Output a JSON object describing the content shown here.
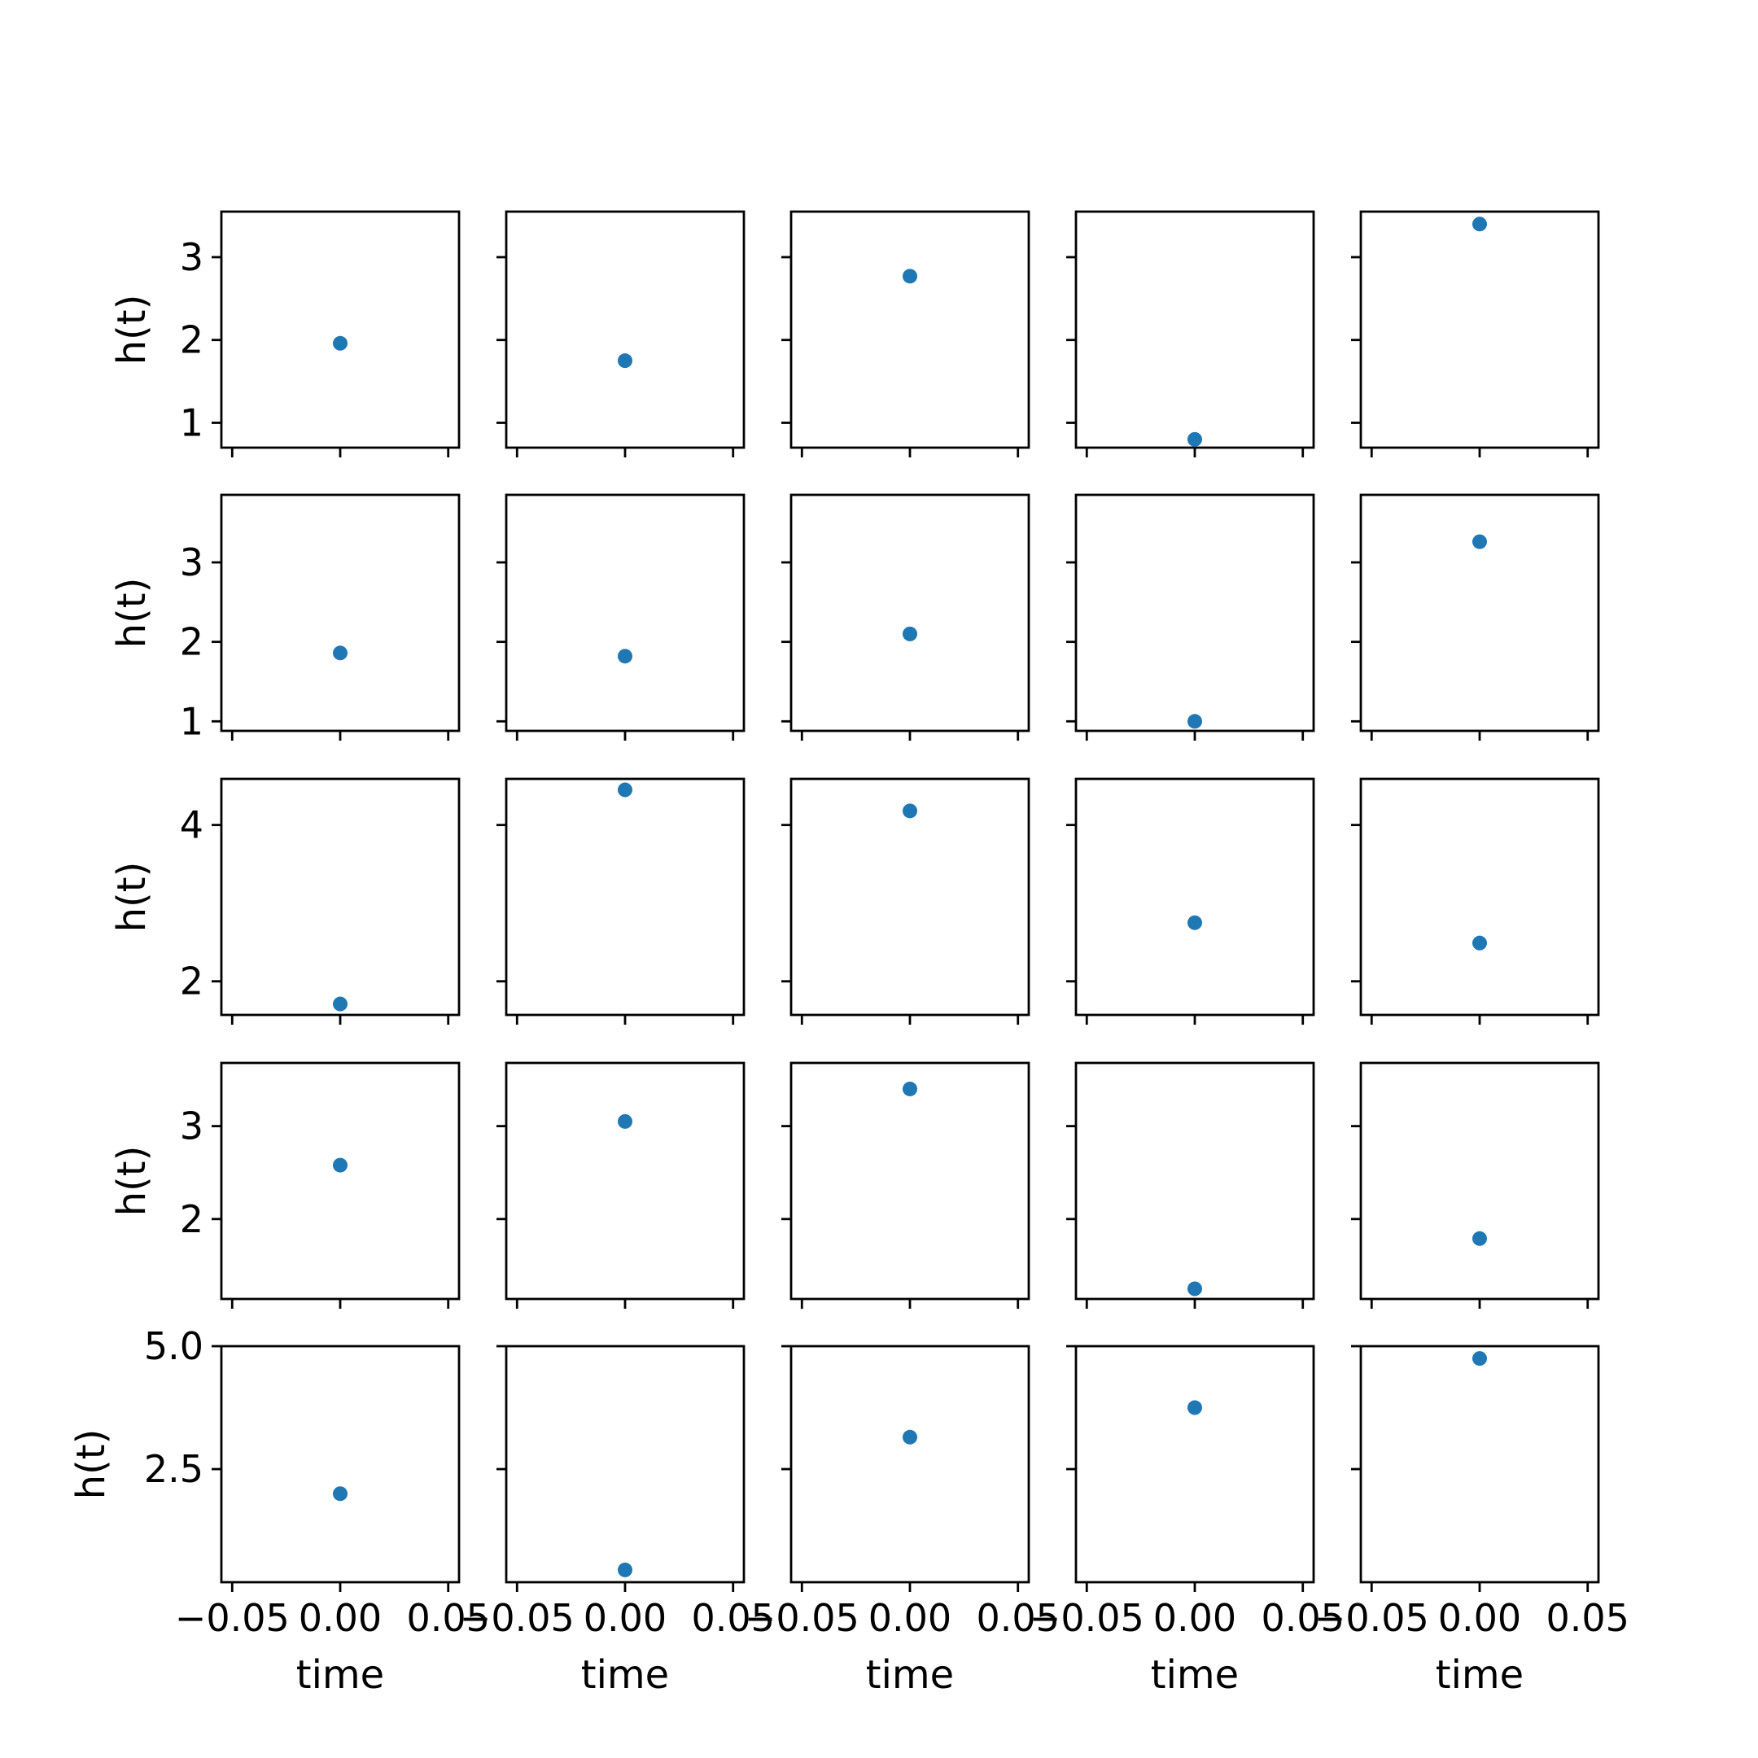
{
  "chart_data": {
    "type": "scatter",
    "grid": false,
    "rows": 5,
    "cols": 5,
    "sharex": true,
    "sharey": "row",
    "marker_color": "#1f77b4",
    "xlabel": "time",
    "ylabel": "h(t)",
    "xlim": [
      -0.055,
      0.055
    ],
    "xticks": [
      -0.05,
      0.0,
      0.05
    ],
    "xtick_labels": [
      "−0.05",
      "0.00",
      "0.05"
    ],
    "row_axes": [
      {
        "ylim": [
          0.7,
          3.55
        ],
        "yticks": [
          1,
          2,
          3
        ],
        "ytick_labels": [
          "1",
          "2",
          "3"
        ]
      },
      {
        "ylim": [
          0.88,
          3.85
        ],
        "yticks": [
          1,
          2,
          3
        ],
        "ytick_labels": [
          "1",
          "2",
          "3"
        ]
      },
      {
        "ylim": [
          1.57,
          4.59
        ],
        "yticks": [
          2,
          4
        ],
        "ytick_labels": [
          "2",
          "4"
        ]
      },
      {
        "ylim": [
          1.14,
          3.68
        ],
        "yticks": [
          2,
          3
        ],
        "ytick_labels": [
          "2",
          "3"
        ]
      },
      {
        "ylim": [
          0.2,
          5.0
        ],
        "yticks": [
          2.5,
          5.0
        ],
        "ytick_labels": [
          "2.5",
          "5.0"
        ]
      }
    ],
    "panels": [
      [
        {
          "x": 0.0,
          "y": 1.96
        },
        {
          "x": 0.0,
          "y": 1.75
        },
        {
          "x": 0.0,
          "y": 2.77
        },
        {
          "x": 0.0,
          "y": 0.8
        },
        {
          "x": 0.0,
          "y": 3.4
        }
      ],
      [
        {
          "x": 0.0,
          "y": 1.86
        },
        {
          "x": 0.0,
          "y": 1.82
        },
        {
          "x": 0.0,
          "y": 2.1
        },
        {
          "x": 0.0,
          "y": 1.0
        },
        {
          "x": 0.0,
          "y": 3.26
        }
      ],
      [
        {
          "x": 0.0,
          "y": 1.71
        },
        {
          "x": 0.0,
          "y": 4.45
        },
        {
          "x": 0.0,
          "y": 4.18
        },
        {
          "x": 0.0,
          "y": 2.75
        },
        {
          "x": 0.0,
          "y": 2.49
        }
      ],
      [
        {
          "x": 0.0,
          "y": 2.58
        },
        {
          "x": 0.0,
          "y": 3.05
        },
        {
          "x": 0.0,
          "y": 3.4
        },
        {
          "x": 0.0,
          "y": 1.25
        },
        {
          "x": 0.0,
          "y": 1.79
        }
      ],
      [
        {
          "x": 0.0,
          "y": 2.0
        },
        {
          "x": 0.0,
          "y": 0.45
        },
        {
          "x": 0.0,
          "y": 3.15
        },
        {
          "x": 0.0,
          "y": 3.75
        },
        {
          "x": 0.0,
          "y": 4.75
        }
      ]
    ]
  }
}
